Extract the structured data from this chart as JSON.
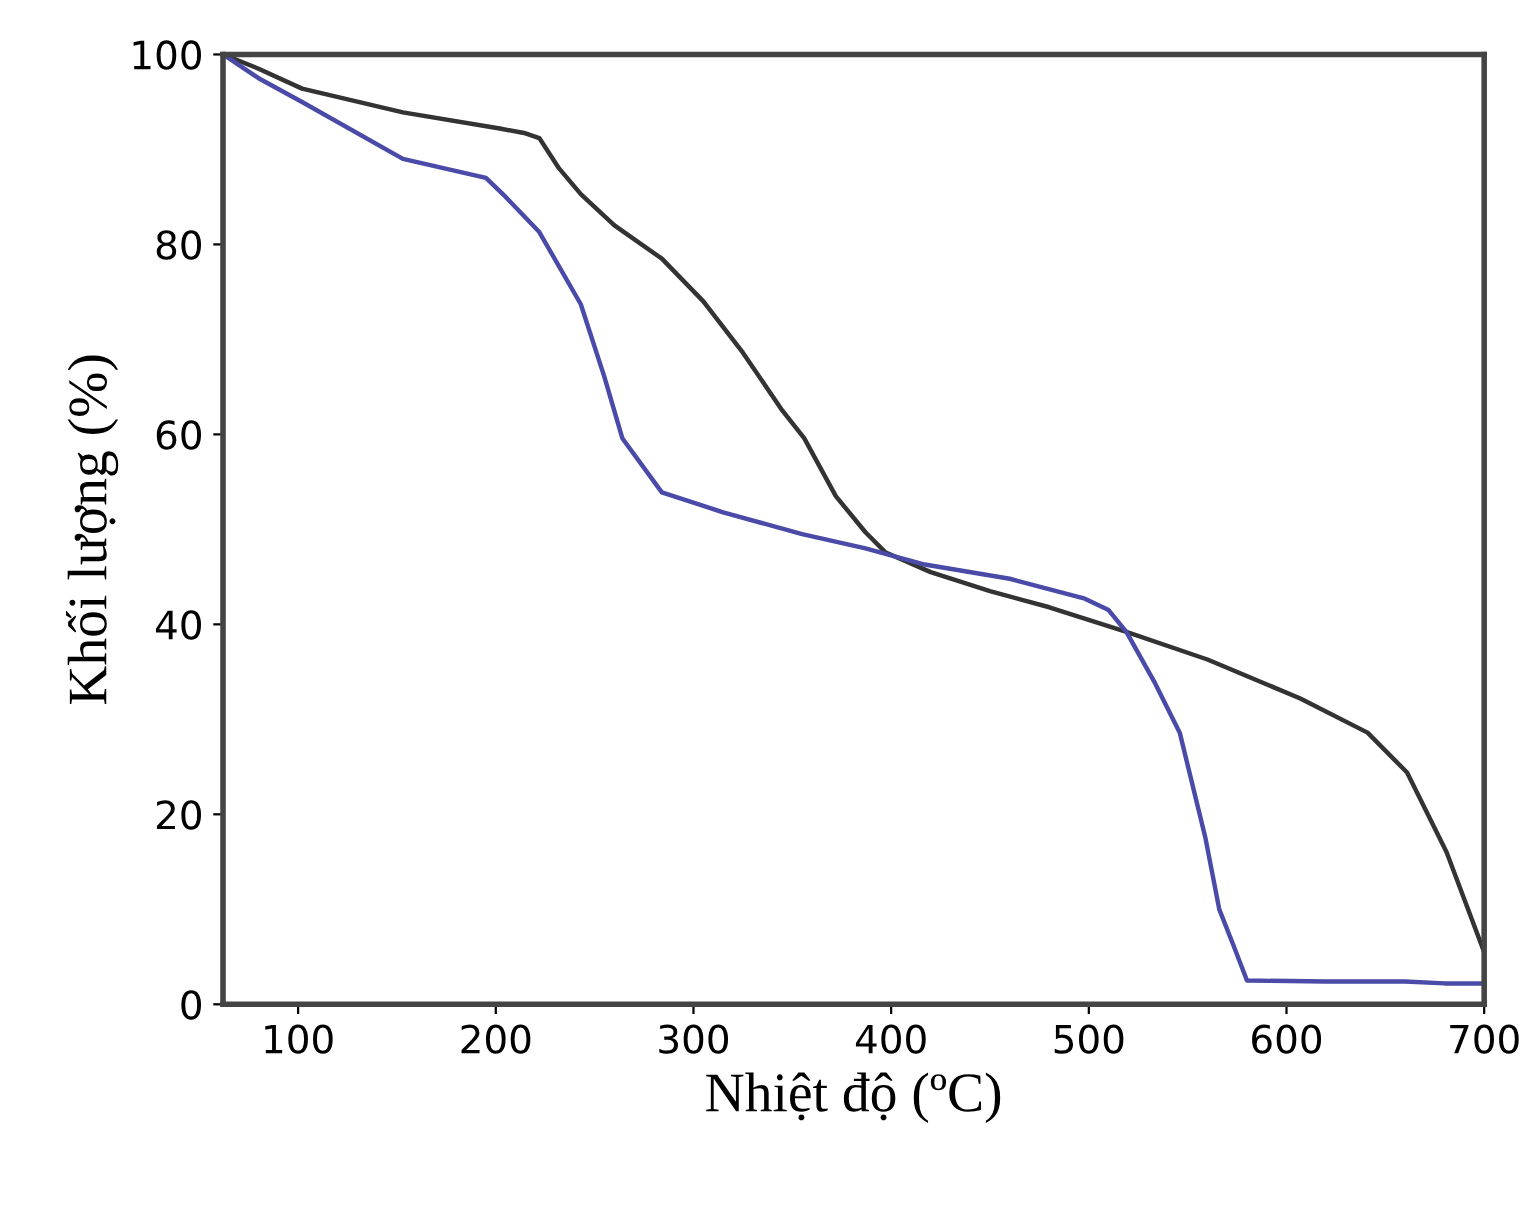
{
  "chart_data": {
    "type": "line",
    "xlabel": "Nhiệt độ (ºC)",
    "ylabel": "Khối lượng (%)",
    "xlim": [
      62,
      700
    ],
    "ylim": [
      0,
      100
    ],
    "xticks": [
      100,
      200,
      300,
      400,
      500,
      600,
      700
    ],
    "yticks": [
      0,
      20,
      40,
      60,
      80,
      100
    ],
    "grid": false,
    "legend": false,
    "marker": "none",
    "line_style": "solid",
    "series": [
      {
        "color": "#333333",
        "x": [
          62,
          80,
          102,
          153,
          202,
          215,
          222,
          232,
          243,
          260,
          284,
          305,
          325,
          345,
          356,
          372,
          387,
          397,
          420,
          450,
          480,
          519,
          560,
          607,
          641,
          661,
          681,
          700
        ],
        "values": [
          100,
          98.5,
          96.4,
          93.9,
          92.2,
          91.7,
          91.2,
          88,
          85.3,
          82,
          78.5,
          74,
          68.6,
          62.5,
          59.6,
          53.5,
          49.7,
          47.6,
          45.5,
          43.5,
          41.8,
          39.2,
          36.3,
          32.2,
          28.6,
          24.4,
          16,
          5.5
        ]
      },
      {
        "color": "#4a4aa8",
        "x": [
          62,
          80,
          102,
          153,
          195,
          205,
          222,
          243,
          255,
          264,
          284,
          315,
          355,
          387,
          417,
          460,
          498,
          510,
          519,
          533,
          546,
          559,
          566,
          573,
          580,
          620,
          660,
          680,
          700
        ],
        "values": [
          100,
          97.5,
          95,
          89,
          87,
          85,
          81.3,
          73.7,
          66,
          59.6,
          53.9,
          51.8,
          49.5,
          48,
          46.3,
          44.8,
          42.7,
          41.5,
          39.2,
          34,
          28.6,
          17.5,
          10,
          6.3,
          2.5,
          2.4,
          2.4,
          2.2,
          2.2
        ]
      }
    ]
  }
}
